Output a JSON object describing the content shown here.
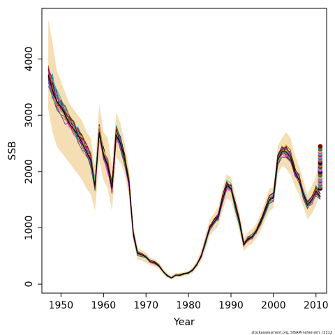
{
  "chart_data": {
    "type": "line",
    "title": "",
    "xlabel": "Year",
    "ylabel": "SSB",
    "xlim": [
      1945.5,
      2012.5
    ],
    "ylim": [
      -160,
      4900
    ],
    "xticks": [
      1950,
      1960,
      1970,
      1980,
      1990,
      2000,
      2010
    ],
    "yticks": [
      0,
      1000,
      2000,
      3000,
      4000
    ],
    "grid": false,
    "legend": "none",
    "footnote": "stockassessment.org, SISAM-nsher-sim, r2212",
    "confidence_band_color": "#f5deb3",
    "series_colors": [
      "#000000",
      "#e6194b",
      "#3cb44b",
      "#4363d8",
      "#f58231",
      "#911eb4",
      "#46b4b4",
      "#f032e6",
      "#d2d200",
      "#008080",
      "#9a6324",
      "#800000",
      "#0000a0",
      "#ff69b4",
      "#00a0c8",
      "#c00000",
      "#a0a000",
      "#6a0dad"
    ],
    "replicate_count": 30,
    "x": [
      1947,
      1948,
      1949,
      1950,
      1951,
      1952,
      1953,
      1954,
      1955,
      1956,
      1957,
      1958,
      1959,
      1960,
      1961,
      1962,
      1963,
      1964,
      1965,
      1966,
      1967,
      1968,
      1969,
      1970,
      1971,
      1972,
      1973,
      1974,
      1975,
      1976,
      1977,
      1978,
      1979,
      1980,
      1981,
      1982,
      1983,
      1984,
      1985,
      1986,
      1987,
      1988,
      1989,
      1990,
      1991,
      1992,
      1993,
      1994,
      1995,
      1996,
      1997,
      1998,
      1999,
      2000,
      2001,
      2002,
      2003,
      2004,
      2005,
      2006,
      2007,
      2008,
      2009,
      2010,
      2011
    ],
    "central_estimate": [
      3700,
      3450,
      3250,
      3150,
      3000,
      2850,
      2750,
      2650,
      2500,
      2350,
      2200,
      1750,
      2700,
      2300,
      2100,
      1700,
      2650,
      2500,
      2200,
      1800,
      900,
      550,
      520,
      480,
      400,
      380,
      330,
      230,
      150,
      110,
      160,
      160,
      180,
      200,
      250,
      350,
      500,
      750,
      1000,
      1100,
      1200,
      1500,
      1750,
      1700,
      1400,
      1100,
      700,
      800,
      850,
      950,
      1100,
      1300,
      1500,
      1550,
      2200,
      2350,
      2350,
      2250,
      2000,
      1850,
      1600,
      1400,
      1500,
      1650,
      1550
    ],
    "band_upper": [
      4700,
      4300,
      3800,
      3600,
      3400,
      3200,
      3100,
      3000,
      2900,
      2700,
      2600,
      2100,
      3200,
      2700,
      2600,
      2100,
      3050,
      2850,
      2500,
      2050,
      1050,
      650,
      600,
      560,
      470,
      440,
      390,
      280,
      190,
      150,
      200,
      200,
      220,
      240,
      300,
      420,
      600,
      880,
      1150,
      1250,
      1380,
      1700,
      1950,
      1900,
      1580,
      1260,
      820,
      920,
      980,
      1080,
      1250,
      1470,
      1700,
      1720,
      2450,
      2600,
      2700,
      2600,
      2300,
      2100,
      1850,
      1600,
      1750,
      1900,
      2500
    ],
    "band_lower": [
      3100,
      2700,
      2450,
      2350,
      2250,
      2150,
      2050,
      1950,
      1850,
      1700,
      1600,
      1300,
      2200,
      1850,
      1700,
      1300,
      2250,
      2150,
      1950,
      1550,
      750,
      430,
      420,
      380,
      330,
      310,
      270,
      180,
      110,
      80,
      120,
      120,
      140,
      160,
      200,
      290,
      410,
      620,
      850,
      950,
      1030,
      1300,
      1520,
      1480,
      1200,
      930,
      580,
      680,
      720,
      820,
      950,
      1130,
      1290,
      1360,
      1950,
      2100,
      2050,
      1950,
      1750,
      1600,
      1380,
      1150,
      1250,
      1400,
      1650
    ],
    "final_point_range": [
      1700,
      2450
    ]
  }
}
